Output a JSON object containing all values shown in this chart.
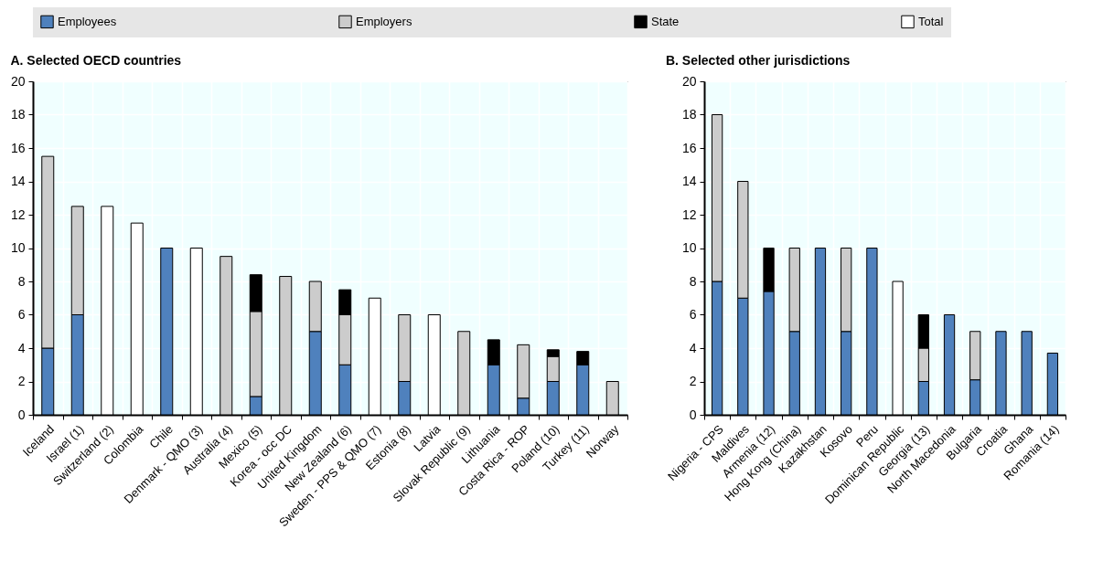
{
  "chart_data": [
    {
      "type": "bar",
      "stacked": true,
      "title": "A. Selected OECD countries",
      "legend": "top",
      "grid": true,
      "categories": [
        "Iceland",
        "Israel (1)",
        "Switzerland (2)",
        "Colombia",
        "Chile",
        "Denmark - QMO (3)",
        "Australia (4)",
        "Mexico (5)",
        "Korea - occ DC",
        "United Kingdom",
        "New Zealand (6)",
        "Sweden - PPS & QMO (7)",
        "Estonia (8)",
        "Latvia",
        "Slovak Republic (9)",
        "Lithuania",
        "Costa Rica - ROP",
        "Poland (10)",
        "Turkey (11)",
        "Norway"
      ],
      "ylim": [
        0,
        20
      ],
      "yticks": [
        0,
        2,
        4,
        6,
        8,
        10,
        12,
        14,
        16,
        18,
        20
      ],
      "series": [
        {
          "name": "Employees",
          "color": "#4f81bd",
          "values": [
            4,
            6,
            null,
            null,
            10,
            null,
            null,
            1.1,
            null,
            5,
            3,
            null,
            2,
            null,
            null,
            3,
            1,
            2,
            3,
            null
          ]
        },
        {
          "name": "Employers",
          "color": "#cccccc",
          "values": [
            11.5,
            6.5,
            null,
            null,
            null,
            null,
            9.5,
            5.1,
            8.3,
            3,
            3,
            null,
            4,
            null,
            5,
            null,
            3.2,
            1.5,
            null,
            2
          ]
        },
        {
          "name": "State",
          "color": "#000000",
          "values": [
            null,
            null,
            null,
            null,
            null,
            null,
            null,
            2.2,
            null,
            null,
            1.5,
            null,
            null,
            null,
            null,
            1.5,
            null,
            0.4,
            0.8,
            null
          ]
        },
        {
          "name": "Total",
          "color": "#ffffff",
          "values": [
            null,
            null,
            12.5,
            11.5,
            null,
            10,
            null,
            null,
            null,
            null,
            null,
            7,
            null,
            6,
            null,
            null,
            null,
            null,
            null,
            null
          ]
        }
      ]
    },
    {
      "type": "bar",
      "stacked": true,
      "title": "B. Selected other jurisdictions",
      "grid": true,
      "categories": [
        "Nigeria - CPS",
        "Maldives",
        "Armenia (12)",
        "Hong Kong (China)",
        "Kazakhstan",
        "Kosovo",
        "Peru",
        "Dominican Republic",
        "Georgia (13)",
        "North Macedonia",
        "Bulgaria",
        "Croatia",
        "Ghana",
        "Romania (14)"
      ],
      "ylim": [
        0,
        20
      ],
      "yticks": [
        0,
        2,
        4,
        6,
        8,
        10,
        12,
        14,
        16,
        18,
        20
      ],
      "series": [
        {
          "name": "Employees",
          "color": "#4f81bd",
          "values": [
            8,
            7,
            7.4,
            5,
            10,
            5,
            10,
            null,
            2,
            6,
            2.1,
            5,
            5,
            3.7
          ]
        },
        {
          "name": "Employers",
          "color": "#cccccc",
          "values": [
            10,
            7,
            null,
            5,
            null,
            5,
            null,
            null,
            2,
            null,
            2.9,
            null,
            null,
            null
          ]
        },
        {
          "name": "State",
          "color": "#000000",
          "values": [
            null,
            null,
            2.6,
            null,
            null,
            null,
            null,
            null,
            2,
            null,
            null,
            null,
            null,
            null
          ]
        },
        {
          "name": "Total",
          "color": "#ffffff",
          "values": [
            null,
            null,
            null,
            null,
            null,
            null,
            null,
            8,
            null,
            null,
            null,
            null,
            null,
            null
          ]
        }
      ]
    }
  ]
}
